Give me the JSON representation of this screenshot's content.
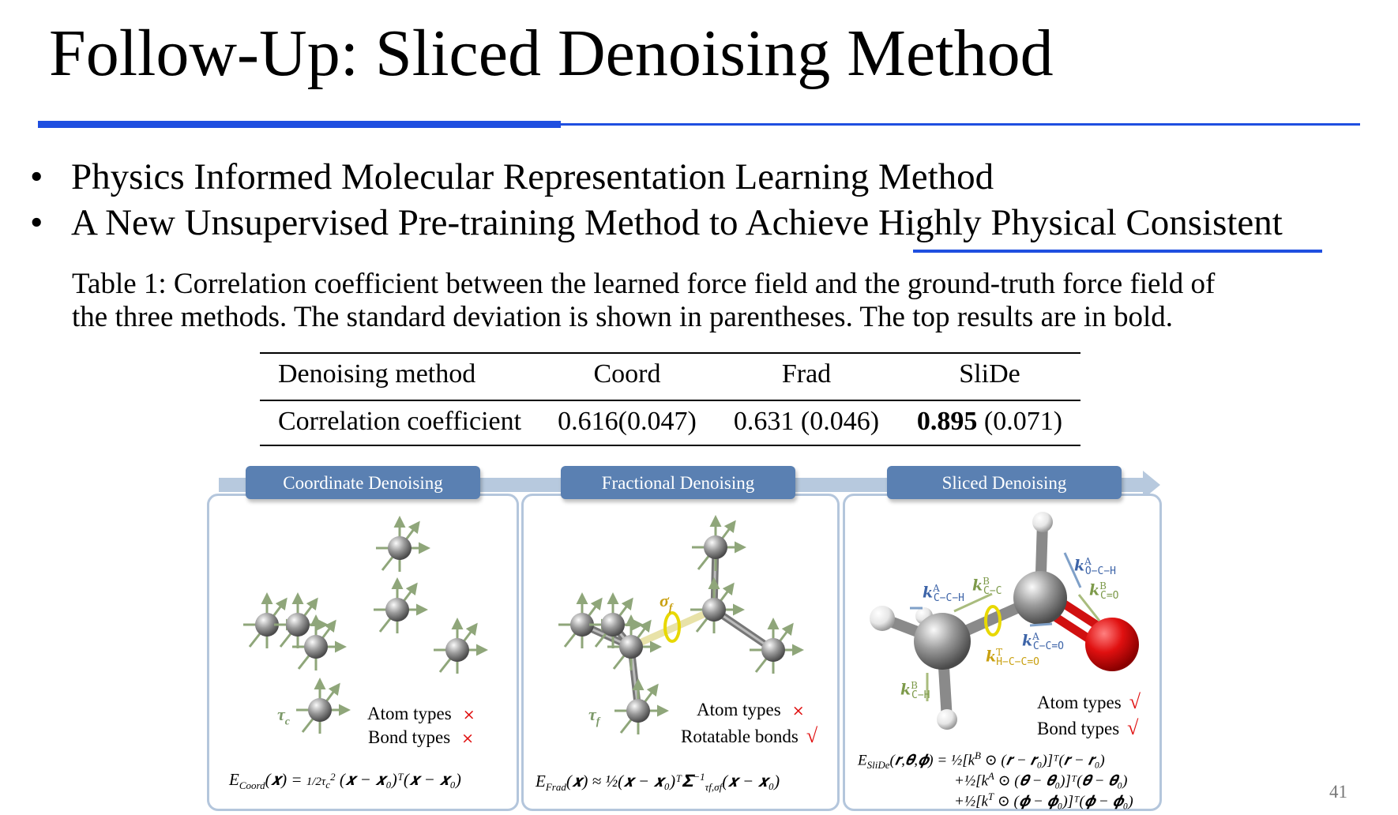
{
  "title": "Follow-Up: Sliced Denoising Method",
  "accent_color": "#1f4fe0",
  "bullets": [
    {
      "text": "Physics Informed Molecular Representation Learning Method"
    },
    {
      "text_before": "A New Unsupervised Pre-training Method to Achieve ",
      "text_underlined": "Highly Physical Consistent"
    }
  ],
  "bullet_symbol": "•",
  "caption": {
    "line1": "Table 1:   Correlation coefficient between the learned force field and the ground-truth force field of",
    "line2": "the three methods. The standard deviation is shown in parentheses. The top results are in bold."
  },
  "table": {
    "headers": [
      "Denoising method",
      "Coord",
      "Frad",
      "SliDe"
    ],
    "row": {
      "label": "Correlation coefficient",
      "coord": "0.616(0.047)",
      "frad": "0.631 (0.046)",
      "slide_bold": "0.895",
      "slide_rest": " (0.071)"
    }
  },
  "panels": [
    {
      "header": "Coordinate Denoising",
      "noise_label": "τ",
      "noise_sub": "c",
      "checks": [
        {
          "label": "Atom types",
          "mark": "×"
        },
        {
          "label": "Bond types",
          "mark": "×"
        }
      ],
      "formula": {
        "E": "E",
        "sub": "Coord",
        "body": "(𝒙) = ",
        "frac": "1/2τ",
        "frac_sub": "c",
        "frac_sup": "2",
        "tail": " (𝒙 − 𝒙₀)ᵀ(𝒙 − 𝒙₀)"
      }
    },
    {
      "header": "Fractional Denoising",
      "noise_label": "τ",
      "noise_sub": "f",
      "rot_label": "σ",
      "rot_sub": "f",
      "checks": [
        {
          "label": "Atom types",
          "mark": "×"
        },
        {
          "label": "Rotatable bonds",
          "mark": "√"
        }
      ],
      "formula": {
        "E": "E",
        "sub": "Frad",
        "body": "(𝒙) ≈ ½(𝒙 − 𝒙₀)ᵀ𝚺",
        "sigma_sup": "−1",
        "sigma_sub": "τf,σf",
        "tail": "(𝒙 − 𝒙₀)"
      }
    },
    {
      "header": "Sliced Denoising",
      "k_labels": [
        {
          "sup": "A",
          "sub": "C−C−H",
          "color": "#3d64a8"
        },
        {
          "sup": "B",
          "sub": "C−C",
          "color": "#7d9a4a"
        },
        {
          "sup": "A",
          "sub": "O−C−H",
          "color": "#3d64a8"
        },
        {
          "sup": "B",
          "sub": "C=O",
          "color": "#7d9a4a"
        },
        {
          "sup": "A",
          "sub": "C−C=O",
          "color": "#3d64a8"
        },
        {
          "sup": "T",
          "sub": "H−C−C=O",
          "color": "#c9a010"
        },
        {
          "sup": "B",
          "sub": "C−H",
          "color": "#7d9a4a"
        }
      ],
      "k_letter": "k",
      "checks": [
        {
          "label": "Atom types",
          "mark": "√"
        },
        {
          "label": "Bond types",
          "mark": "√"
        }
      ],
      "formula": {
        "E": "E",
        "sub": "SliDe",
        "line1": "(𝒓,𝜽,𝝓) = ½[k",
        "line1_sup": "B",
        "line1_tail": " ⊙ (𝒓 − 𝒓₀)]ᵀ(𝒓 − 𝒓₀)",
        "line2": "+½[k",
        "line2_sup": "A",
        "line2_tail": " ⊙ (𝜽 − 𝜽₀)]ᵀ(𝜽 − 𝜽₀)",
        "line3": "+½[k",
        "line3_sup": "T",
        "line3_tail": " ⊙ (𝝓 − 𝝓₀)]ᵀ(𝝓 − 𝝓₀)"
      }
    }
  ],
  "colors": {
    "tab": "#5a80b2",
    "band": "#b7c9de",
    "noise_arrow": "#8fa67a",
    "oxygen": "#e01010",
    "cross_check": "#e01010"
  },
  "page_number": "41"
}
